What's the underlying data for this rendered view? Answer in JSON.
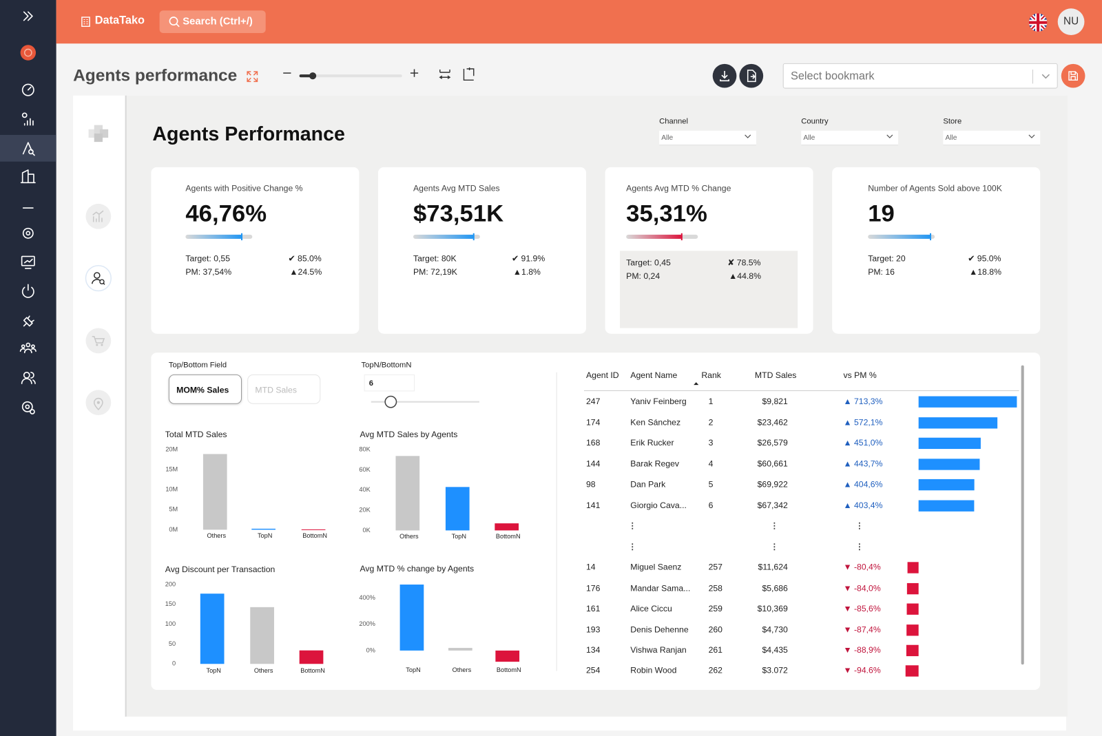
{
  "header": {
    "brand": "DataTako",
    "search": "Search (Ctrl+/)",
    "user": "NU"
  },
  "toolbar": {
    "title": "Agents performance",
    "bookmark_placeholder": "Select bookmark"
  },
  "report": {
    "title": "Agents Performance",
    "filters": [
      {
        "label": "Channel",
        "value": "Alle"
      },
      {
        "label": "Country",
        "value": "Alle"
      },
      {
        "label": "Store",
        "value": "Alle"
      }
    ]
  },
  "kpis": [
    {
      "title": "Agents with Positive Change %",
      "value": "46,76%",
      "target": "Target: 0,55",
      "previous": "PM: 37,54%",
      "attainment": 85.0,
      "attainment_label": "✔ 85.0%",
      "change": "▲24.5%",
      "color": "#2196f3"
    },
    {
      "title": "Agents Avg MTD Sales",
      "value": "$73,51K",
      "target": "Target: 80K",
      "previous": "PM: 72,19K",
      "attainment": 91.9,
      "attainment_label": "✔ 91.9%",
      "change": "▲1.8%",
      "color": "#2196f3"
    },
    {
      "title": "Agents Avg MTD % Change",
      "value": "35,31%",
      "target": "Target: 0,45",
      "previous": "PM: 0,24",
      "attainment": 78.5,
      "attainment_label": "✘ 78.5%",
      "change": "▲44.8%",
      "color": "#dc143c"
    },
    {
      "title": "Number of Agents Sold above 100K",
      "value": "19",
      "target": "Target: 20",
      "previous": "PM: 16",
      "attainment": 95.0,
      "attainment_label": "✔ 95.0%",
      "change": "▲18.8%",
      "color": "#2196f3"
    }
  ],
  "slicers": {
    "field_label": "Top/Bottom Field",
    "options": [
      "MOM% Sales",
      "MTD Sales"
    ],
    "selected": 0,
    "n_label": "TopN/BottomN",
    "n": 6
  },
  "chart_data": [
    {
      "type": "bar",
      "title": "Total MTD Sales",
      "categories": [
        "Others",
        "TopN",
        "BottomN"
      ],
      "values": [
        18900000,
        250000,
        80000
      ],
      "colors": [
        "#c8c8c8",
        "#1e90ff",
        "#dc143c"
      ],
      "ylim": [
        0,
        20000000
      ],
      "yticks": [
        {
          "value": 0,
          "label": "0M"
        },
        {
          "value": 5000000,
          "label": "5M"
        },
        {
          "value": 10000000,
          "label": "10M"
        },
        {
          "value": 15000000,
          "label": "15M"
        },
        {
          "value": 20000000,
          "label": "20M"
        }
      ]
    },
    {
      "type": "bar",
      "title": "Avg MTD Sales by Agents",
      "categories": [
        "Others",
        "TopN",
        "BottomN"
      ],
      "values": [
        73700,
        43000,
        7000
      ],
      "colors": [
        "#c8c8c8",
        "#1e90ff",
        "#dc143c"
      ],
      "ylim": [
        0,
        80000
      ],
      "yticks": [
        {
          "value": 0,
          "label": "0K"
        },
        {
          "value": 20000,
          "label": "20K"
        },
        {
          "value": 40000,
          "label": "40K"
        },
        {
          "value": 60000,
          "label": "60K"
        },
        {
          "value": 80000,
          "label": "80K"
        }
      ]
    },
    {
      "type": "bar",
      "title": "Avg Discount per Transaction",
      "categories": [
        "TopN",
        "Others",
        "BottomN"
      ],
      "values": [
        177,
        143,
        34
      ],
      "colors": [
        "#1e90ff",
        "#c8c8c8",
        "#dc143c"
      ],
      "ylim": [
        0,
        200
      ],
      "yticks": [
        0,
        50,
        100,
        150,
        200
      ]
    },
    {
      "type": "bar",
      "title": "Avg MTD % change by Agents",
      "categories": [
        "TopN",
        "Others",
        "BottomN"
      ],
      "values": [
        501,
        20,
        -85
      ],
      "colors": [
        "#1e90ff",
        "#c8c8c8",
        "#dc143c"
      ],
      "ylim": [
        -100,
        520
      ],
      "yticks": [
        {
          "value": 0,
          "label": "0%"
        },
        {
          "value": 200,
          "label": "200%"
        },
        {
          "value": 400,
          "label": "400%"
        }
      ]
    }
  ],
  "table": {
    "columns": [
      "Agent ID",
      "Agent Name",
      "Rank",
      "MTD Sales",
      "vs PM %"
    ],
    "rows": [
      [
        "247",
        "Yaniv Feinberg",
        "1",
        "$9,821",
        "▲ 713,3%"
      ],
      [
        "174",
        "Ken Sánchez",
        "2",
        "$23,462",
        "▲ 572,1%"
      ],
      [
        "168",
        "Erik Rucker",
        "3",
        "$26,579",
        "▲ 451,0%"
      ],
      [
        "144",
        "Barak Regev",
        "4",
        "$60,661",
        "▲ 443,7%"
      ],
      [
        "98",
        "Dan Park",
        "5",
        "$69,922",
        "▲ 404,6%"
      ],
      [
        "141",
        "Giorgio Cava...",
        "6",
        "$67,342",
        "▲ 403,4%"
      ],
      [
        "14",
        "Miguel Saenz",
        "257",
        "$11,624",
        "▼ -80,4%"
      ],
      [
        "176",
        "Mandar Sama...",
        "258",
        "$5,686",
        "▼ -84,0%"
      ],
      [
        "161",
        "Alice Ciccu",
        "259",
        "$10,369",
        "▼ -85,6%"
      ],
      [
        "193",
        "Denis Dehenne",
        "260",
        "$4,730",
        "▼ -87,4%"
      ],
      [
        "134",
        "Vishwa Ranjan",
        "261",
        "$4,435",
        "▼ -88,9%"
      ],
      [
        "254",
        "Robin Wood",
        "262",
        "$3.072",
        "▼ -94.6%"
      ]
    ],
    "vs_pm": [
      713.3,
      572.1,
      451.0,
      443.7,
      404.6,
      403.4,
      -80.4,
      -84.0,
      -85.6,
      -87.4,
      -88.9,
      -94.6
    ],
    "xlim": [
      -100,
      720
    ]
  }
}
